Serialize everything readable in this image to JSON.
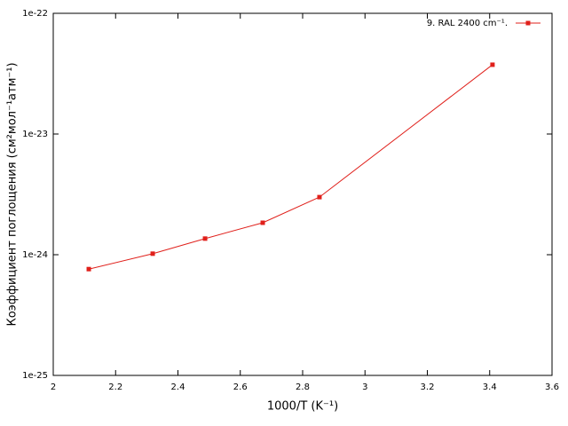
{
  "chart_data": {
    "type": "line",
    "xlabel": "1000/T (K⁻¹)",
    "ylabel": "Коэффициент поглощения (см²мол⁻¹атм⁻¹)",
    "x": [
      2.114,
      2.319,
      2.487,
      2.672,
      2.854,
      3.409
    ],
    "series": [
      {
        "name": "9. RAL 2400 cm⁻¹.",
        "color": "#e0201b",
        "values": [
          7.6e-25,
          1.02e-24,
          1.36e-24,
          1.84e-24,
          3e-24,
          3.75e-23
        ]
      }
    ],
    "xlim": [
      2,
      3.6
    ],
    "xticks": [
      2,
      2.2,
      2.4,
      2.6,
      2.8,
      3,
      3.2,
      3.4,
      3.6
    ],
    "ylim": [
      1e-25,
      1e-22
    ],
    "yticks": [
      {
        "value": 1e-25,
        "label": "1e-25"
      },
      {
        "value": 1e-24,
        "label": "1e-24"
      },
      {
        "value": 1e-23,
        "label": "1e-23"
      },
      {
        "value": 1e-22,
        "label": "1e-22"
      }
    ],
    "ylog": true,
    "grid": false,
    "legend": "top-right"
  }
}
